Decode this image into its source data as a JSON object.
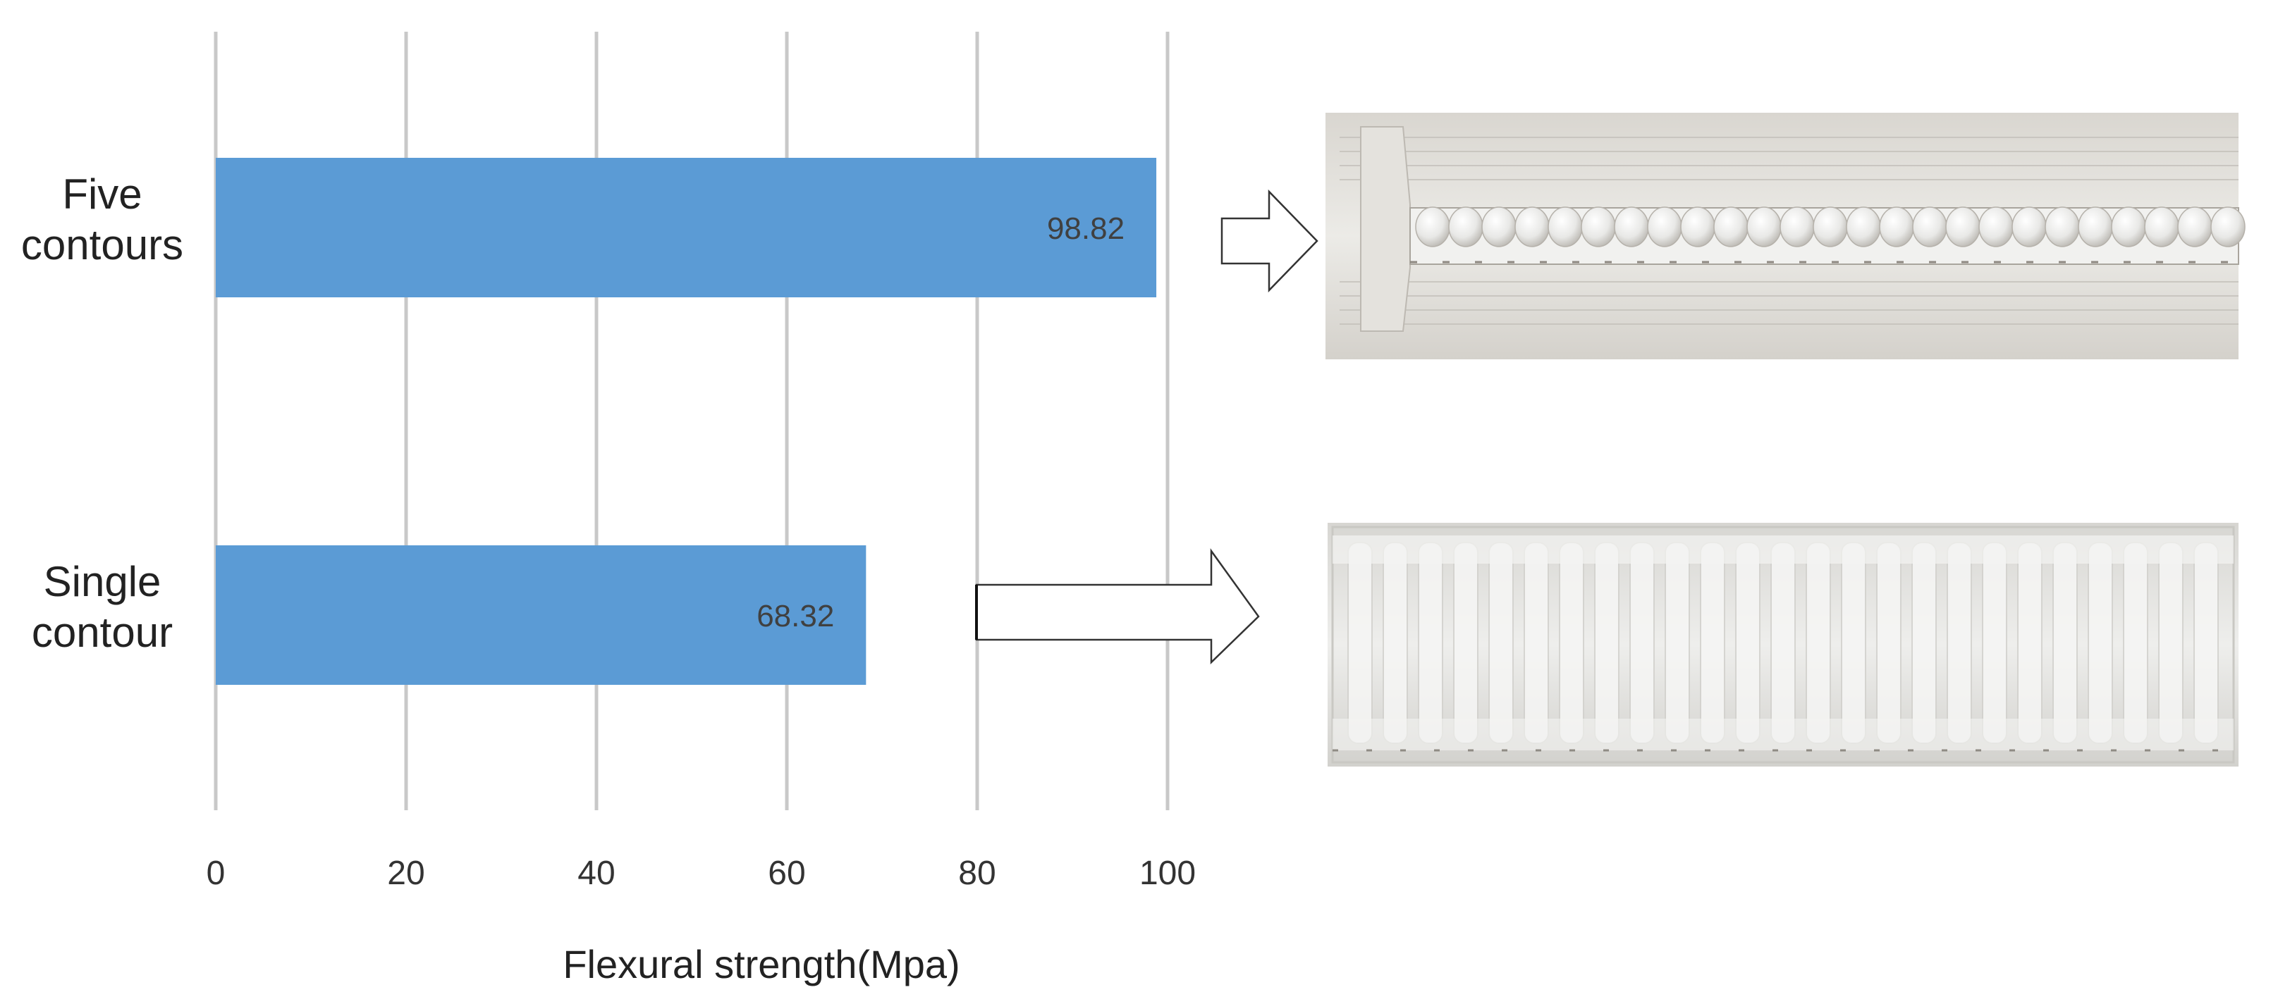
{
  "chart_data": {
    "type": "bar",
    "orientation": "horizontal",
    "categories": [
      [
        "Five",
        "contours"
      ],
      [
        "Single",
        "contour"
      ]
    ],
    "values": [
      98.82,
      68.32
    ],
    "data_labels": [
      "98.82",
      "68.32"
    ],
    "xlabel": "Flexural strength(Mpa)",
    "xlim": [
      0,
      100
    ],
    "xticks": [
      0,
      20,
      40,
      60,
      80,
      100
    ],
    "grid": "vertical",
    "bar_color": "#5B9BD5",
    "grid_color": "#c8c8c8"
  },
  "photos": [
    {
      "icon": "printed-specimen-five-contours-photo"
    },
    {
      "icon": "printed-specimen-single-contour-photo"
    }
  ],
  "arrows": [
    {
      "icon": "outline-right-arrow-icon"
    },
    {
      "icon": "outline-right-arrow-icon"
    }
  ]
}
